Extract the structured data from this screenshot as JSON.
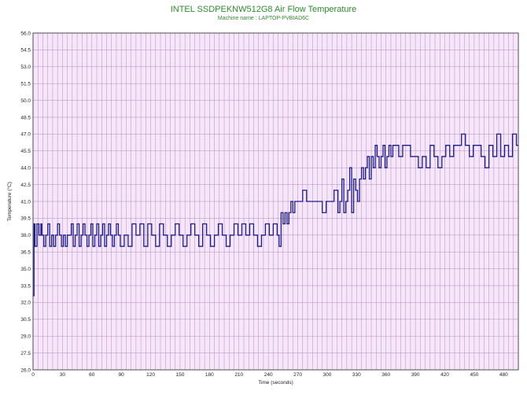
{
  "chart_data": {
    "type": "line",
    "title": "INTEL SSDPEKNW512G8 Air Flow Temperature",
    "subtitle": "Machine name : LAPTOP-PVBIAD6C",
    "xlabel": "Time (seconds)",
    "ylabel": "Temperature (°C)",
    "xlim": [
      0,
      495
    ],
    "ylim": [
      26.0,
      56.0
    ],
    "x_ticks": [
      "0",
      "30",
      "60",
      "90",
      "120",
      "150",
      "180",
      "210",
      "240",
      "270",
      "300",
      "330",
      "360",
      "390",
      "420",
      "450",
      "480"
    ],
    "y_ticks": [
      "26.0",
      "27.5",
      "29.0",
      "30.5",
      "32.0",
      "33.5",
      "35.0",
      "36.5",
      "38.0",
      "39.5",
      "41.0",
      "42.5",
      "44.0",
      "45.5",
      "47.0",
      "48.5",
      "50.0",
      "51.5",
      "53.0",
      "54.5",
      "56.0"
    ],
    "grid": true,
    "plot_background": "#f5e6fa",
    "grid_color": "#b88ac0",
    "series": [
      {
        "color": "#1c1c8c",
        "x": [
          0,
          1,
          2,
          4,
          6,
          8,
          9,
          11,
          13,
          15,
          17,
          19,
          21,
          23,
          25,
          27,
          29,
          31,
          33,
          35,
          37,
          39,
          41,
          43,
          45,
          47,
          49,
          51,
          53,
          55,
          57,
          59,
          61,
          63,
          65,
          67,
          69,
          71,
          73,
          75,
          77,
          79,
          81,
          83,
          85,
          87,
          89,
          93,
          97,
          101,
          105,
          109,
          113,
          117,
          121,
          125,
          129,
          133,
          137,
          141,
          145,
          149,
          153,
          157,
          161,
          165,
          169,
          173,
          177,
          181,
          185,
          189,
          193,
          197,
          201,
          205,
          209,
          213,
          217,
          221,
          225,
          229,
          233,
          237,
          241,
          245,
          249,
          251,
          253,
          255,
          257,
          259,
          261,
          263,
          265,
          267,
          269,
          271,
          275,
          279,
          283,
          287,
          291,
          295,
          299,
          303,
          307,
          311,
          313,
          315,
          317,
          319,
          321,
          323,
          325,
          327,
          329,
          331,
          333,
          335,
          337,
          339,
          341,
          343,
          345,
          347,
          349,
          351,
          353,
          355,
          357,
          359,
          361,
          363,
          365,
          367,
          369,
          373,
          377,
          381,
          385,
          389,
          393,
          397,
          401,
          405,
          409,
          413,
          417,
          421,
          425,
          429,
          433,
          437,
          441,
          445,
          449,
          453,
          457,
          461,
          465,
          469,
          473,
          477,
          481,
          485,
          489,
          493
        ],
        "y": [
          32.6,
          39.0,
          37.0,
          39.0,
          38.0,
          39.0,
          38.0,
          37.0,
          38.0,
          39.0,
          37.0,
          38.0,
          37.0,
          38.0,
          39.0,
          38.0,
          37.0,
          38.0,
          37.0,
          38.0,
          38.0,
          39.0,
          37.0,
          38.0,
          39.0,
          37.0,
          38.0,
          39.0,
          38.0,
          37.0,
          38.0,
          39.0,
          37.0,
          38.0,
          39.0,
          37.0,
          38.0,
          39.0,
          37.0,
          38.0,
          39.0,
          38.0,
          37.0,
          38.0,
          39.0,
          38.0,
          37.0,
          38.0,
          37.0,
          39.0,
          38.0,
          39.0,
          37.0,
          39.0,
          38.0,
          37.0,
          39.0,
          38.0,
          37.0,
          38.0,
          39.0,
          38.0,
          37.0,
          38.0,
          39.0,
          38.0,
          37.0,
          39.0,
          38.0,
          37.0,
          38.0,
          39.0,
          38.0,
          37.0,
          38.0,
          39.0,
          38.0,
          39.0,
          38.0,
          39.0,
          38.0,
          37.0,
          38.0,
          39.0,
          38.0,
          39.0,
          38.0,
          37.0,
          40.0,
          39.0,
          40.0,
          39.0,
          40.0,
          41.0,
          40.0,
          41.0,
          41.0,
          41.0,
          42.0,
          41.0,
          41.0,
          41.0,
          41.0,
          40.0,
          41.0,
          41.0,
          42.0,
          40.0,
          41.0,
          43.0,
          40.0,
          41.0,
          42.0,
          44.0,
          40.0,
          43.0,
          42.0,
          41.0,
          43.0,
          44.0,
          43.0,
          44.0,
          45.0,
          43.0,
          45.0,
          44.0,
          46.0,
          45.0,
          44.0,
          45.0,
          46.0,
          44.0,
          45.0,
          46.0,
          45.0,
          46.0,
          46.0,
          45.0,
          46.0,
          46.0,
          45.0,
          45.0,
          44.0,
          45.0,
          44.0,
          46.0,
          45.0,
          44.0,
          45.0,
          46.0,
          45.0,
          46.0,
          46.0,
          47.0,
          46.0,
          45.0,
          46.0,
          46.0,
          45.0,
          44.0,
          46.0,
          45.0,
          47.0,
          45.0,
          46.0,
          45.0,
          47.0,
          46.0
        ]
      }
    ]
  }
}
